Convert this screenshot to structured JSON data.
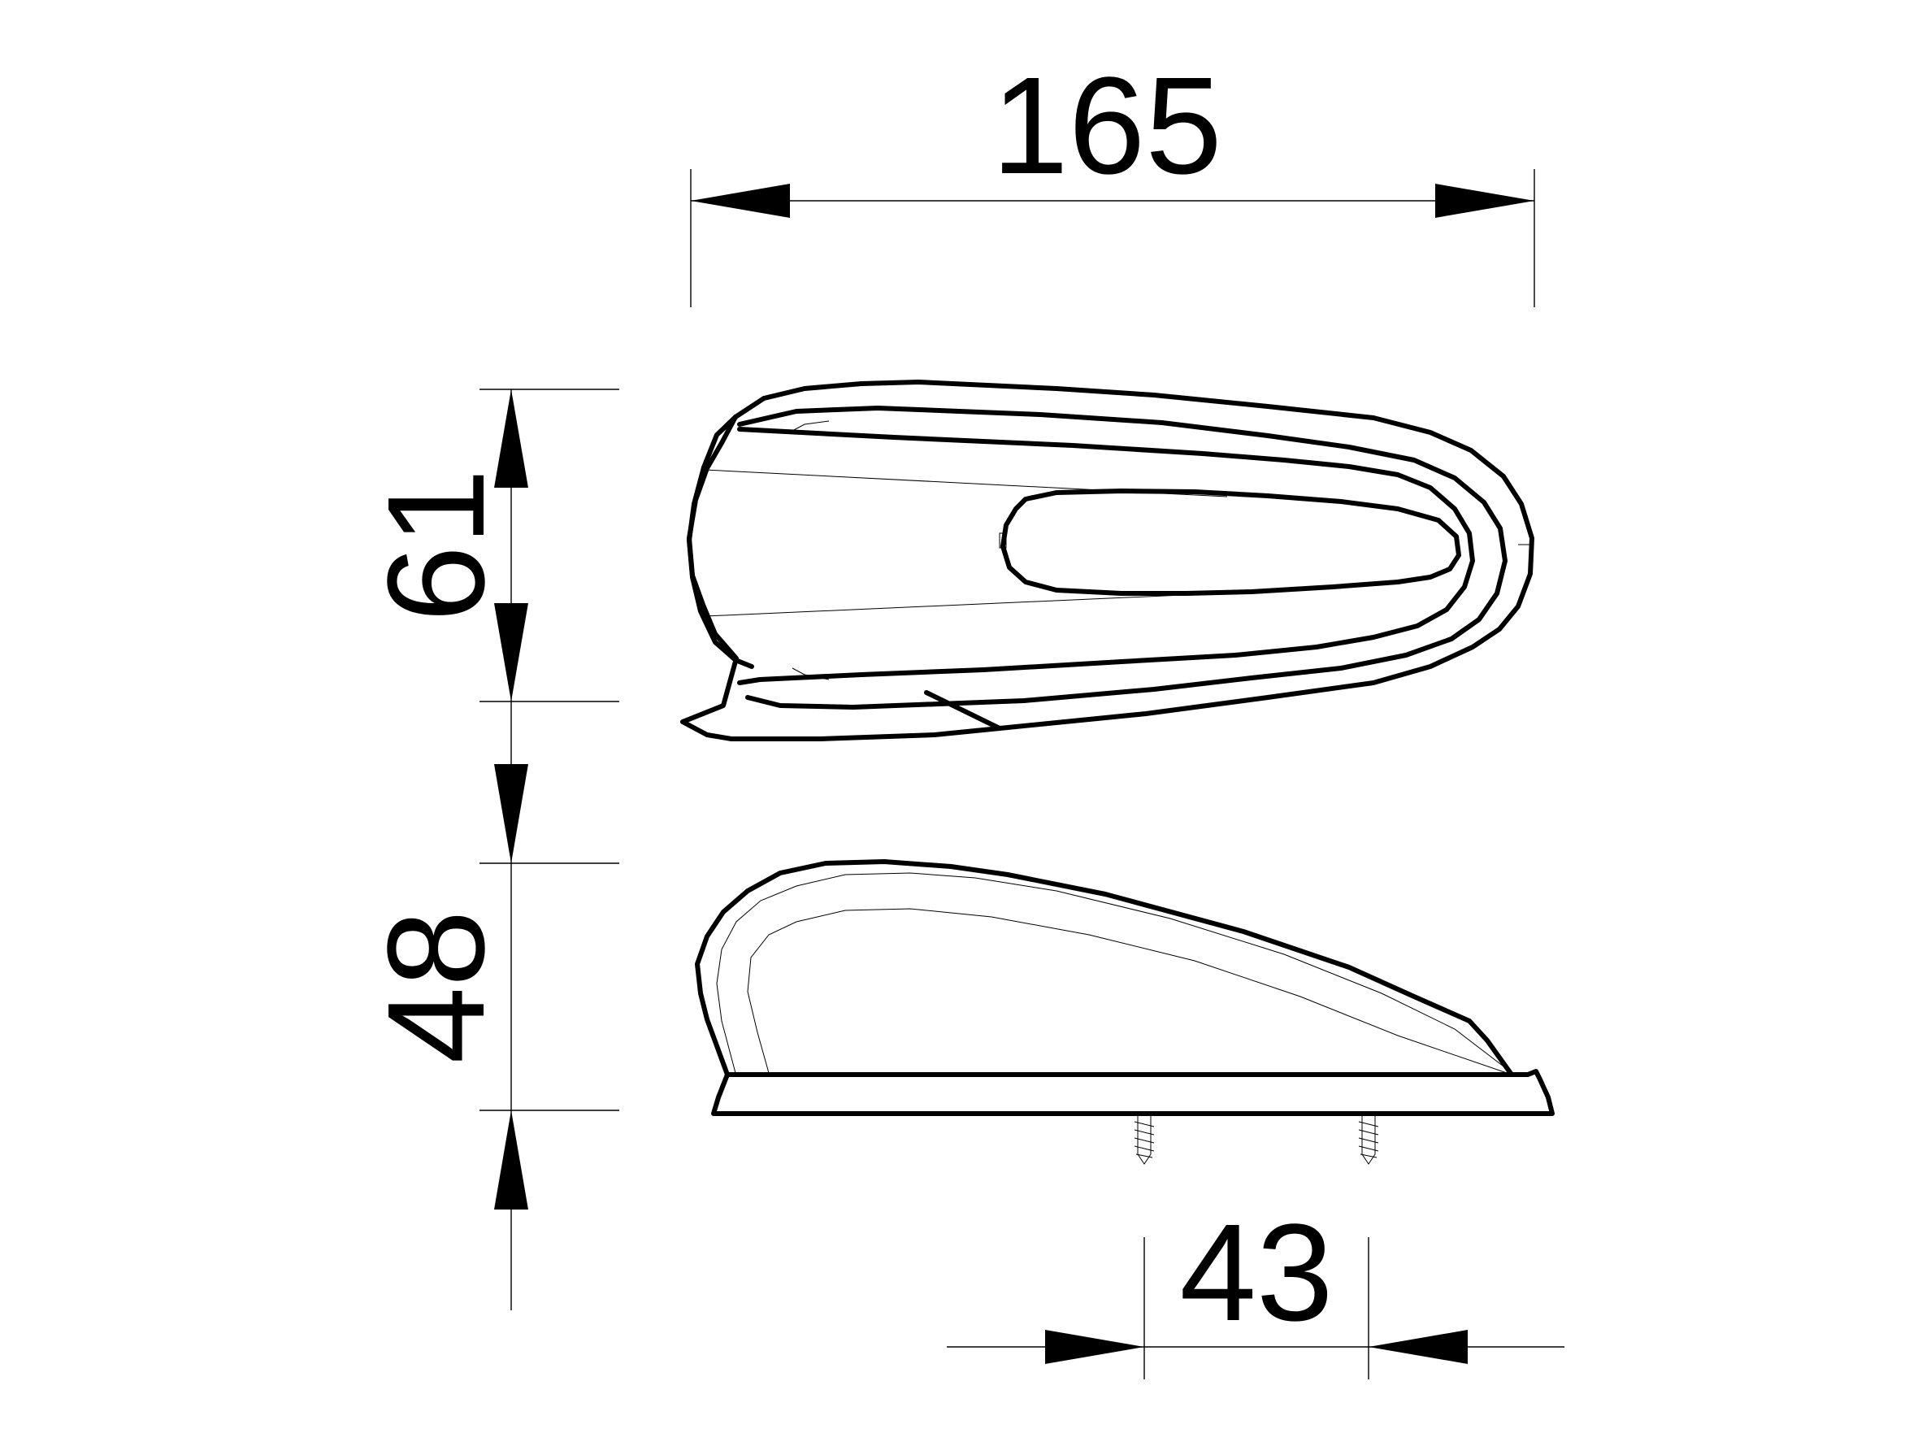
{
  "dimensions": {
    "length": "165",
    "width": "61",
    "height": "48",
    "screw_spacing": "43"
  },
  "colors": {
    "line": "#000000",
    "background": "#ffffff"
  }
}
